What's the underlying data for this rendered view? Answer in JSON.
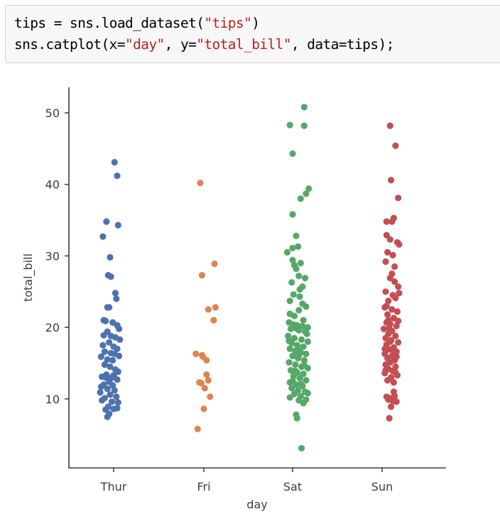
{
  "code_cell": {
    "line1": {
      "pre": "tips = sns.load_dataset(",
      "s1": "\"tips\"",
      "post": ")"
    },
    "line2": {
      "pre": "sns.catplot(x=",
      "s1": "\"day\"",
      "mid1": ", y=",
      "s2": "\"total_bill\"",
      "post": ", data=tips);"
    }
  },
  "chart_data": {
    "type": "scatter",
    "subtype": "strip (categorical scatter with jitter)",
    "title": "",
    "xlabel": "day",
    "ylabel": "total_bill",
    "categories": [
      "Thur",
      "Fri",
      "Sat",
      "Sun"
    ],
    "yticks": [
      10,
      20,
      30,
      40,
      50
    ],
    "ylim": [
      0.5,
      53.6
    ],
    "grid": false,
    "legend": null,
    "colors": {
      "Thur": "#4c72b0",
      "Fri": "#dd8452",
      "Sat": "#55a868",
      "Sun": "#c44e52"
    },
    "series": [
      {
        "name": "Thur",
        "points": [
          [
            0.06,
            43.1
          ],
          [
            0.09,
            41.2
          ],
          [
            -0.03,
            34.8
          ],
          [
            0.1,
            34.3
          ],
          [
            -0.07,
            32.7
          ],
          [
            0.01,
            29.8
          ],
          [
            -0.01,
            27.3
          ],
          [
            0.02,
            27.1
          ],
          [
            0.07,
            24.8
          ],
          [
            0.08,
            24.0
          ],
          [
            -0.02,
            22.8
          ],
          [
            0.0,
            22.8
          ],
          [
            -0.06,
            21.0
          ],
          [
            -0.04,
            20.9
          ],
          [
            0.04,
            20.7
          ],
          [
            0.09,
            20.3
          ],
          [
            0.11,
            19.8
          ],
          [
            -0.02,
            19.4
          ],
          [
            -0.06,
            18.9
          ],
          [
            0.02,
            18.8
          ],
          [
            0.07,
            18.6
          ],
          [
            0.12,
            18.3
          ],
          [
            0.0,
            17.9
          ],
          [
            -0.07,
            17.5
          ],
          [
            0.05,
            17.3
          ],
          [
            0.09,
            17.0
          ],
          [
            -0.05,
            16.6
          ],
          [
            0.02,
            16.4
          ],
          [
            0.06,
            16.3
          ],
          [
            0.11,
            16.0
          ],
          [
            -0.09,
            15.9
          ],
          [
            -0.02,
            15.5
          ],
          [
            0.04,
            15.4
          ],
          [
            -0.05,
            14.8
          ],
          [
            0.01,
            14.5
          ],
          [
            0.07,
            14.1
          ],
          [
            0.1,
            13.8
          ],
          [
            -0.03,
            13.4
          ],
          [
            0.05,
            13.3
          ],
          [
            -0.08,
            13.1
          ],
          [
            -0.04,
            13.0
          ],
          [
            0.02,
            12.9
          ],
          [
            0.09,
            12.7
          ],
          [
            0.0,
            12.4
          ],
          [
            -0.06,
            12.0
          ],
          [
            0.04,
            11.9
          ],
          [
            -0.09,
            11.7
          ],
          [
            -0.02,
            11.4
          ],
          [
            0.06,
            11.2
          ],
          [
            -0.1,
            10.9
          ],
          [
            0.01,
            10.6
          ],
          [
            0.08,
            10.3
          ],
          [
            -0.05,
            10.1
          ],
          [
            -0.08,
            9.8
          ],
          [
            0.03,
            9.6
          ],
          [
            0.1,
            9.5
          ],
          [
            -0.01,
            8.9
          ],
          [
            0.05,
            8.6
          ],
          [
            0.09,
            8.7
          ],
          [
            -0.04,
            8.5
          ],
          [
            0.0,
            7.9
          ],
          [
            -0.02,
            7.5
          ]
        ]
      },
      {
        "name": "Fri",
        "points": [
          [
            0.01,
            40.2
          ],
          [
            0.17,
            28.9
          ],
          [
            0.03,
            27.3
          ],
          [
            0.1,
            22.5
          ],
          [
            0.18,
            22.8
          ],
          [
            0.16,
            21.0
          ],
          [
            -0.04,
            16.3
          ],
          [
            0.03,
            16.1
          ],
          [
            0.04,
            15.9
          ],
          [
            0.08,
            15.4
          ],
          [
            0.08,
            13.4
          ],
          [
            0.1,
            12.6
          ],
          [
            0.0,
            12.3
          ],
          [
            0.02,
            12.2
          ],
          [
            0.06,
            11.5
          ],
          [
            0.12,
            10.3
          ],
          [
            0.05,
            8.6
          ],
          [
            -0.02,
            5.8
          ]
        ]
      },
      {
        "name": "Sat",
        "points": [
          [
            0.18,
            50.8
          ],
          [
            0.02,
            48.3
          ],
          [
            0.18,
            48.2
          ],
          [
            0.05,
            44.3
          ],
          [
            0.23,
            39.4
          ],
          [
            0.2,
            38.7
          ],
          [
            0.14,
            38.0
          ],
          [
            0.05,
            35.8
          ],
          [
            0.09,
            32.8
          ],
          [
            0.11,
            31.3
          ],
          [
            -0.01,
            30.5
          ],
          [
            0.05,
            29.4
          ],
          [
            0.14,
            29.0
          ],
          [
            0.09,
            28.2
          ],
          [
            0.12,
            27.2
          ],
          [
            0.19,
            26.9
          ],
          [
            0.04,
            26.3
          ],
          [
            0.16,
            25.7
          ],
          [
            0.06,
            24.6
          ],
          [
            0.13,
            24.3
          ],
          [
            0.02,
            23.7
          ],
          [
            0.2,
            22.9
          ],
          [
            0.12,
            22.4
          ],
          [
            0.07,
            21.6
          ],
          [
            0.17,
            21.0
          ],
          [
            0.01,
            20.7
          ],
          [
            0.06,
            20.4
          ],
          [
            0.1,
            20.3
          ],
          [
            0.16,
            20.2
          ],
          [
            0.22,
            20.0
          ],
          [
            0.03,
            19.8
          ],
          [
            0.12,
            19.6
          ],
          [
            0.19,
            19.4
          ],
          [
            0.0,
            18.8
          ],
          [
            0.07,
            18.5
          ],
          [
            0.15,
            18.3
          ],
          [
            0.22,
            18.0
          ],
          [
            0.04,
            17.8
          ],
          [
            0.1,
            17.5
          ],
          [
            0.17,
            17.3
          ],
          [
            0.02,
            17.0
          ],
          [
            0.08,
            16.7
          ],
          [
            0.14,
            16.5
          ],
          [
            0.2,
            16.3
          ],
          [
            0.05,
            16.0
          ],
          [
            0.11,
            15.7
          ],
          [
            0.18,
            15.4
          ],
          [
            0.01,
            15.1
          ],
          [
            0.08,
            14.8
          ],
          [
            0.15,
            14.5
          ],
          [
            0.22,
            14.3
          ],
          [
            0.03,
            14.0
          ],
          [
            0.1,
            13.7
          ],
          [
            0.17,
            13.5
          ],
          [
            0.06,
            13.2
          ],
          [
            0.13,
            12.9
          ],
          [
            0.2,
            12.6
          ],
          [
            0.02,
            12.3
          ],
          [
            0.09,
            12.0
          ],
          [
            0.16,
            11.8
          ],
          [
            0.04,
            11.5
          ],
          [
            0.11,
            11.2
          ],
          [
            0.19,
            11.0
          ],
          [
            0.07,
            10.7
          ],
          [
            0.14,
            10.4
          ],
          [
            0.22,
            10.8
          ],
          [
            0.02,
            10.2
          ],
          [
            0.12,
            9.8
          ],
          [
            0.17,
            9.4
          ],
          [
            0.09,
            7.8
          ],
          [
            0.1,
            7.3
          ],
          [
            0.15,
            3.1
          ],
          [
            0.05,
            31.1
          ],
          [
            0.13,
            25.3
          ],
          [
            0.02,
            21.9
          ],
          [
            0.21,
            19.1
          ],
          [
            0.11,
            17.1
          ],
          [
            0.18,
            14.7
          ],
          [
            0.05,
            12.5
          ],
          [
            0.14,
            12.1
          ],
          [
            0.2,
            9.9
          ],
          [
            0.07,
            28.7
          ],
          [
            0.16,
            23.3
          ],
          [
            0.09,
            19.9
          ],
          [
            0.01,
            18.1
          ],
          [
            0.12,
            16.1
          ],
          [
            0.08,
            13.9
          ]
        ]
      },
      {
        "name": "Sun",
        "points": [
          [
            0.14,
            48.2
          ],
          [
            0.2,
            45.4
          ],
          [
            0.15,
            40.6
          ],
          [
            0.23,
            38.1
          ],
          [
            0.18,
            35.3
          ],
          [
            0.1,
            34.8
          ],
          [
            0.16,
            34.8
          ],
          [
            0.1,
            32.9
          ],
          [
            0.14,
            32.3
          ],
          [
            0.22,
            31.9
          ],
          [
            0.11,
            30.5
          ],
          [
            0.17,
            30.1
          ],
          [
            0.24,
            31.6
          ],
          [
            0.09,
            29.2
          ],
          [
            0.19,
            28.5
          ],
          [
            0.14,
            26.9
          ],
          [
            0.23,
            25.7
          ],
          [
            0.09,
            25.0
          ],
          [
            0.17,
            24.5
          ],
          [
            0.2,
            24.1
          ],
          [
            0.12,
            23.7
          ],
          [
            0.08,
            22.8
          ],
          [
            0.16,
            22.5
          ],
          [
            0.22,
            22.2
          ],
          [
            0.11,
            21.8
          ],
          [
            0.18,
            21.3
          ],
          [
            0.1,
            20.7
          ],
          [
            0.14,
            20.5
          ],
          [
            0.21,
            20.2
          ],
          [
            0.07,
            19.8
          ],
          [
            0.16,
            19.5
          ],
          [
            0.12,
            19.1
          ],
          [
            0.2,
            18.8
          ],
          [
            0.09,
            18.5
          ],
          [
            0.15,
            18.2
          ],
          [
            0.23,
            17.9
          ],
          [
            0.1,
            17.6
          ],
          [
            0.18,
            17.2
          ],
          [
            0.13,
            16.9
          ],
          [
            0.21,
            16.6
          ],
          [
            0.08,
            16.3
          ],
          [
            0.16,
            16.0
          ],
          [
            0.11,
            15.7
          ],
          [
            0.19,
            15.4
          ],
          [
            0.14,
            15.1
          ],
          [
            0.09,
            14.8
          ],
          [
            0.2,
            14.5
          ],
          [
            0.12,
            14.2
          ],
          [
            0.17,
            13.9
          ],
          [
            0.08,
            13.6
          ],
          [
            0.22,
            13.3
          ],
          [
            0.15,
            13.0
          ],
          [
            0.11,
            12.6
          ],
          [
            0.18,
            12.3
          ],
          [
            0.1,
            10.3
          ],
          [
            0.14,
            10.1
          ],
          [
            0.19,
            10.4
          ],
          [
            0.12,
            9.9
          ],
          [
            0.17,
            9.7
          ],
          [
            0.21,
            9.6
          ],
          [
            0.15,
            8.9
          ],
          [
            0.13,
            7.3
          ],
          [
            0.19,
            26.4
          ],
          [
            0.1,
            23.0
          ],
          [
            0.23,
            20.9
          ],
          [
            0.14,
            18.0
          ],
          [
            0.21,
            15.9
          ],
          [
            0.09,
            14.0
          ],
          [
            0.18,
            11.0
          ],
          [
            0.12,
            21.0
          ],
          [
            0.16,
            27.5
          ],
          [
            0.24,
            24.8
          ],
          [
            0.08,
            17.0
          ],
          [
            0.2,
            13.7
          ],
          [
            0.13,
            19.9
          ],
          [
            0.17,
            16.8
          ]
        ]
      }
    ]
  }
}
